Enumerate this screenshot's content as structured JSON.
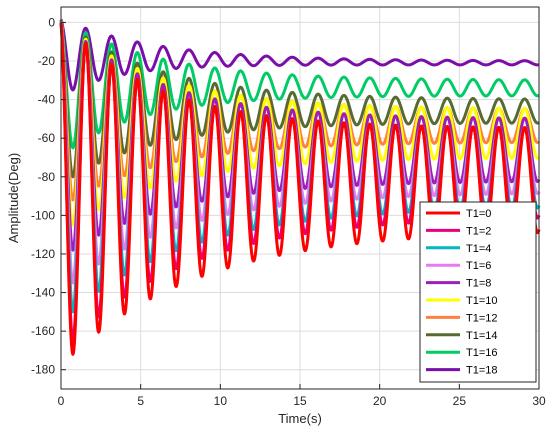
{
  "chart_data": {
    "type": "line",
    "title": "",
    "xlabel": "Time(s)",
    "ylabel": "Amplitude(Deg)",
    "xlim": [
      0,
      30
    ],
    "ylim": [
      -190,
      8
    ],
    "xticks": [
      0,
      5,
      10,
      15,
      20,
      25,
      30
    ],
    "yticks": [
      0,
      -20,
      -40,
      -60,
      -80,
      -100,
      -120,
      -140,
      -160,
      -180
    ],
    "grid": true,
    "legend_position": "bottom-right",
    "series": [
      {
        "name": "T1=0",
        "color": "#ff0000",
        "period": 1.62,
        "first_min": 0.75,
        "first_depth": -172,
        "final_depth": -107,
        "decay": 0.02,
        "mean": -55
      },
      {
        "name": "T1=2",
        "color": "#e6007e",
        "period": 1.62,
        "first_min": 0.75,
        "first_depth": -165,
        "final_depth": -100,
        "decay": 0.022,
        "mean": -55
      },
      {
        "name": "T1=4",
        "color": "#00b8c0",
        "period": 1.62,
        "first_min": 0.75,
        "first_depth": -150,
        "final_depth": -95,
        "decay": 0.022,
        "mean": -55
      },
      {
        "name": "T1=6",
        "color": "#e67cf0",
        "period": 1.62,
        "first_min": 0.75,
        "first_depth": -135,
        "final_depth": -88,
        "decay": 0.024,
        "mean": -55
      },
      {
        "name": "T1=8",
        "color": "#9b1fb8",
        "period": 1.62,
        "first_min": 0.75,
        "first_depth": -118,
        "final_depth": -82,
        "decay": 0.025,
        "mean": -50
      },
      {
        "name": "T1=10",
        "color": "#ffff00",
        "period": 1.62,
        "first_min": 0.75,
        "first_depth": -105,
        "final_depth": -70,
        "decay": 0.027,
        "mean": -45
      },
      {
        "name": "T1=12",
        "color": "#ff8040",
        "period": 1.62,
        "first_min": 0.75,
        "first_depth": -92,
        "final_depth": -62,
        "decay": 0.028,
        "mean": -45
      },
      {
        "name": "T1=14",
        "color": "#556b2f",
        "period": 1.62,
        "first_min": 0.75,
        "first_depth": -80,
        "final_depth": -52,
        "decay": 0.03,
        "mean": -40
      },
      {
        "name": "T1=16",
        "color": "#00cc66",
        "period": 1.62,
        "first_min": 0.75,
        "first_depth": -65,
        "final_depth": -38,
        "decay": 0.035,
        "mean": -30
      },
      {
        "name": "T1=18",
        "color": "#7a0ea8",
        "period": 1.62,
        "first_min": 0.75,
        "first_depth": -35,
        "final_depth": -22,
        "decay": 0.05,
        "mean": -20
      }
    ]
  }
}
